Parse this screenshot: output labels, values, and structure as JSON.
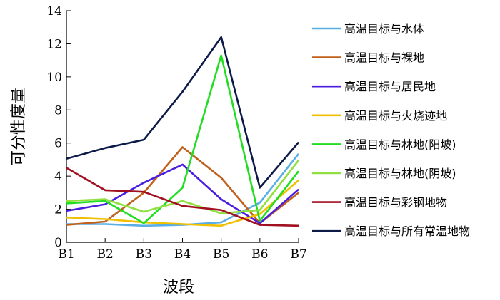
{
  "chart_data": {
    "type": "line",
    "x": [
      "B1",
      "B2",
      "B3",
      "B4",
      "B5",
      "B6",
      "B7"
    ],
    "xlabel": "波段",
    "ylabel": "可分性度量",
    "ylim": [
      0,
      14
    ],
    "yticks": [
      0,
      2,
      4,
      6,
      8,
      10,
      12,
      14
    ],
    "grid": false,
    "legend": "right",
    "series": [
      {
        "name": "高温目标与水体",
        "color": "#5aaee6",
        "values": [
          1.1,
          1.1,
          1.0,
          1.05,
          1.2,
          2.4,
          5.35
        ]
      },
      {
        "name": "高温目标与裸地",
        "color": "#c0601a",
        "values": [
          1.05,
          1.25,
          3.0,
          5.75,
          3.9,
          1.15,
          3.0
        ]
      },
      {
        "name": "高温目标与居民地",
        "color": "#4a1ee0",
        "values": [
          1.9,
          2.3,
          3.6,
          4.7,
          2.6,
          1.15,
          3.2
        ]
      },
      {
        "name": "高温目标与火烧迹地",
        "color": "#f0c000",
        "values": [
          1.5,
          1.4,
          1.2,
          1.1,
          1.0,
          1.7,
          3.75
        ]
      },
      {
        "name": "高温目标与林地(阳坡)",
        "color": "#22dd22",
        "values": [
          2.35,
          2.5,
          1.15,
          3.3,
          11.3,
          1.3,
          4.3
        ]
      },
      {
        "name": "高温目标与林地(阴坡)",
        "color": "#90e040",
        "values": [
          2.5,
          2.6,
          1.85,
          2.5,
          1.75,
          1.95,
          4.95
        ]
      },
      {
        "name": "高温目标与彩钢地物",
        "color": "#a01020",
        "values": [
          4.5,
          3.15,
          3.05,
          2.2,
          1.95,
          1.05,
          1.0
        ]
      },
      {
        "name": "高温目标与所有常温地物",
        "color": "#0c1a48",
        "values": [
          5.05,
          5.7,
          6.2,
          9.1,
          12.4,
          3.3,
          6.05
        ]
      }
    ]
  }
}
